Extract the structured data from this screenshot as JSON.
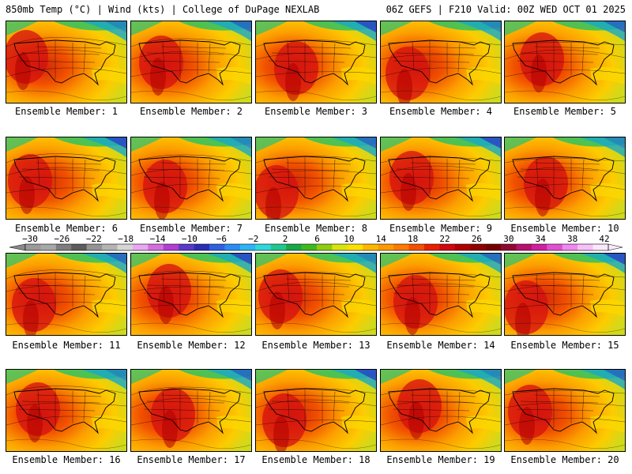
{
  "header": {
    "left": "850mb Temp (°C) | Wind (kts) | College of DuPage NEXLAB",
    "right": "06Z GEFS | F210 Valid: 00Z WED OCT 01 2025"
  },
  "caption_prefix": "Ensemble Member: ",
  "members": [
    1,
    2,
    3,
    4,
    5,
    6,
    7,
    8,
    9,
    10,
    11,
    12,
    13,
    14,
    15,
    16,
    17,
    18,
    19,
    20
  ],
  "colorbar": {
    "tick_labels": [
      "−30",
      "−26",
      "−22",
      "−18",
      "−14",
      "−10",
      "−6",
      "−2",
      "2",
      "6",
      "10",
      "14",
      "18",
      "22",
      "26",
      "30",
      "34",
      "38",
      "42"
    ],
    "colors": [
      "#9a9a9a",
      "#a8a8a8",
      "#7d7d7d",
      "#5c5c5c",
      "#949494",
      "#b4b4b4",
      "#d6d6d6",
      "#e8a8f0",
      "#d46ee0",
      "#b040d0",
      "#5a3ac8",
      "#2c2cb4",
      "#3060e0",
      "#2c8cf4",
      "#2cb4f4",
      "#30d8d8",
      "#20c890",
      "#18a848",
      "#40b820",
      "#90cc10",
      "#d8e410",
      "#fce000",
      "#fcb800",
      "#fc9a00",
      "#fc7c00",
      "#f45000",
      "#e82000",
      "#d00810",
      "#b00000",
      "#900000",
      "#780000",
      "#900830",
      "#b8106c",
      "#d020a0",
      "#e050d0",
      "#f088f0",
      "#f8c0f8",
      "#fce8fc"
    ]
  },
  "colors": {
    "hot": "#d41010",
    "warm": "#fc9a00",
    "mild": "#fce000",
    "cool": "#30c860",
    "cold": "#2c3ec8"
  }
}
